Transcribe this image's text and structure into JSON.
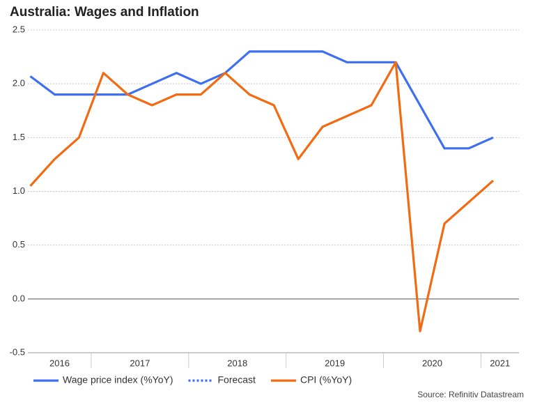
{
  "chart_data": {
    "type": "line",
    "title": "Australia: Wages and Inflation",
    "source": "Source: Refinitiv Datastream",
    "x": [
      2016.375,
      2016.625,
      2016.875,
      2017.125,
      2017.375,
      2017.625,
      2017.875,
      2018.125,
      2018.375,
      2018.625,
      2018.875,
      2019.125,
      2019.375,
      2019.625,
      2019.875,
      2020.125,
      2020.375,
      2020.625,
      2020.875,
      2021.125
    ],
    "series": [
      {
        "name": "Wage price index (%YoY)",
        "color": "#3d6ff0",
        "style": "solid",
        "values": [
          2.07,
          1.9,
          1.9,
          1.9,
          1.9,
          2.0,
          2.1,
          2.0,
          2.1,
          2.3,
          2.3,
          2.3,
          2.3,
          2.2,
          2.2,
          2.2,
          1.8,
          1.4,
          1.4,
          1.5
        ]
      },
      {
        "name": "Forecast",
        "color": "#3d6ff0",
        "style": "dotted",
        "values": [
          null,
          null,
          null,
          null,
          null,
          null,
          null,
          null,
          null,
          null,
          null,
          null,
          null,
          null,
          null,
          null,
          null,
          null,
          null,
          null
        ]
      },
      {
        "name": "CPI (%YoY)",
        "color": "#f26b12",
        "style": "solid",
        "values": [
          1.05,
          1.3,
          1.5,
          2.1,
          1.9,
          1.8,
          1.9,
          1.9,
          2.1,
          1.9,
          1.8,
          1.3,
          1.6,
          1.7,
          1.8,
          2.2,
          -0.3,
          0.7,
          0.9,
          1.1
        ]
      }
    ],
    "xlim": [
      2016.35,
      2021.39
    ],
    "xticks": [
      {
        "value": 2016.5,
        "label": "2016"
      },
      {
        "value": 2017.5,
        "label": "2017"
      },
      {
        "value": 2018.5,
        "label": "2018"
      },
      {
        "value": 2019.5,
        "label": "2019"
      },
      {
        "value": 2020.5,
        "label": "2020"
      },
      {
        "value": 2021.5,
        "label": "2021"
      }
    ],
    "ylim": [
      -0.5,
      2.5
    ],
    "yticks": [
      {
        "value": -0.5,
        "label": "-0.5"
      },
      {
        "value": 0,
        "label": "0.0"
      },
      {
        "value": 0.5,
        "label": "0.5"
      },
      {
        "value": 1,
        "label": "1.0"
      },
      {
        "value": 1.5,
        "label": "1.5"
      },
      {
        "value": 2,
        "label": "2.0"
      },
      {
        "value": 2.5,
        "label": "2.5"
      }
    ],
    "grid": true,
    "legend": "bottom"
  }
}
